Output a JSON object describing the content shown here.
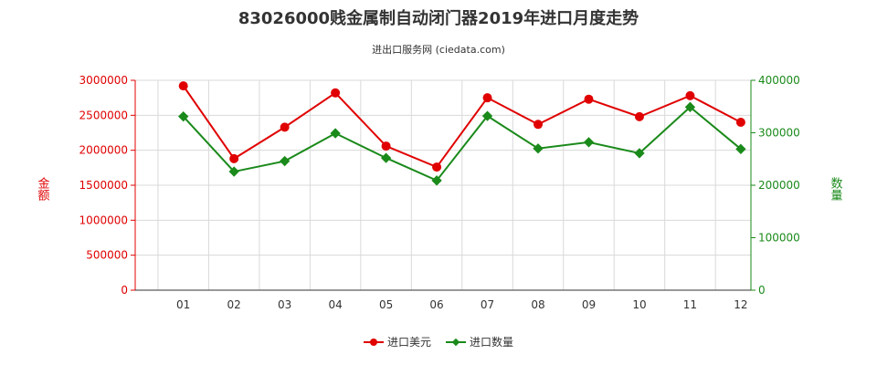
{
  "header": {
    "title": "83026000贱金属制自动闭门器2019年进口月度走势",
    "subtitle": "进出口服务网 (ciedata.com)"
  },
  "chart_data": {
    "type": "line",
    "categories": [
      "01",
      "02",
      "03",
      "04",
      "05",
      "06",
      "07",
      "08",
      "09",
      "10",
      "11",
      "12"
    ],
    "series": [
      {
        "name": "进口美元",
        "axis": "left",
        "color": "#e00000",
        "values": [
          2920000,
          1880000,
          2330000,
          2820000,
          2060000,
          1760000,
          2750000,
          2370000,
          2730000,
          2480000,
          2780000,
          2400000
        ]
      },
      {
        "name": "进口数量",
        "axis": "right",
        "color": "#1a8a1a",
        "values": [
          331000,
          226000,
          246000,
          299000,
          252000,
          209000,
          332000,
          270000,
          282000,
          261000,
          349000,
          269000
        ]
      }
    ],
    "ylabel_left": "金额",
    "ylabel_right": "数量",
    "ylim_left": [
      0,
      3000000
    ],
    "ylim_right": [
      0,
      400000
    ],
    "yticks_left": [
      "0",
      "500000",
      "1000000",
      "1500000",
      "2000000",
      "2500000",
      "3000000"
    ],
    "yticks_right": [
      "0",
      "100000",
      "200000",
      "300000",
      "400000"
    ],
    "grid": true,
    "legend_position": "bottom",
    "left_axis_color": "#e00000",
    "right_axis_color": "#1a8a1a"
  }
}
